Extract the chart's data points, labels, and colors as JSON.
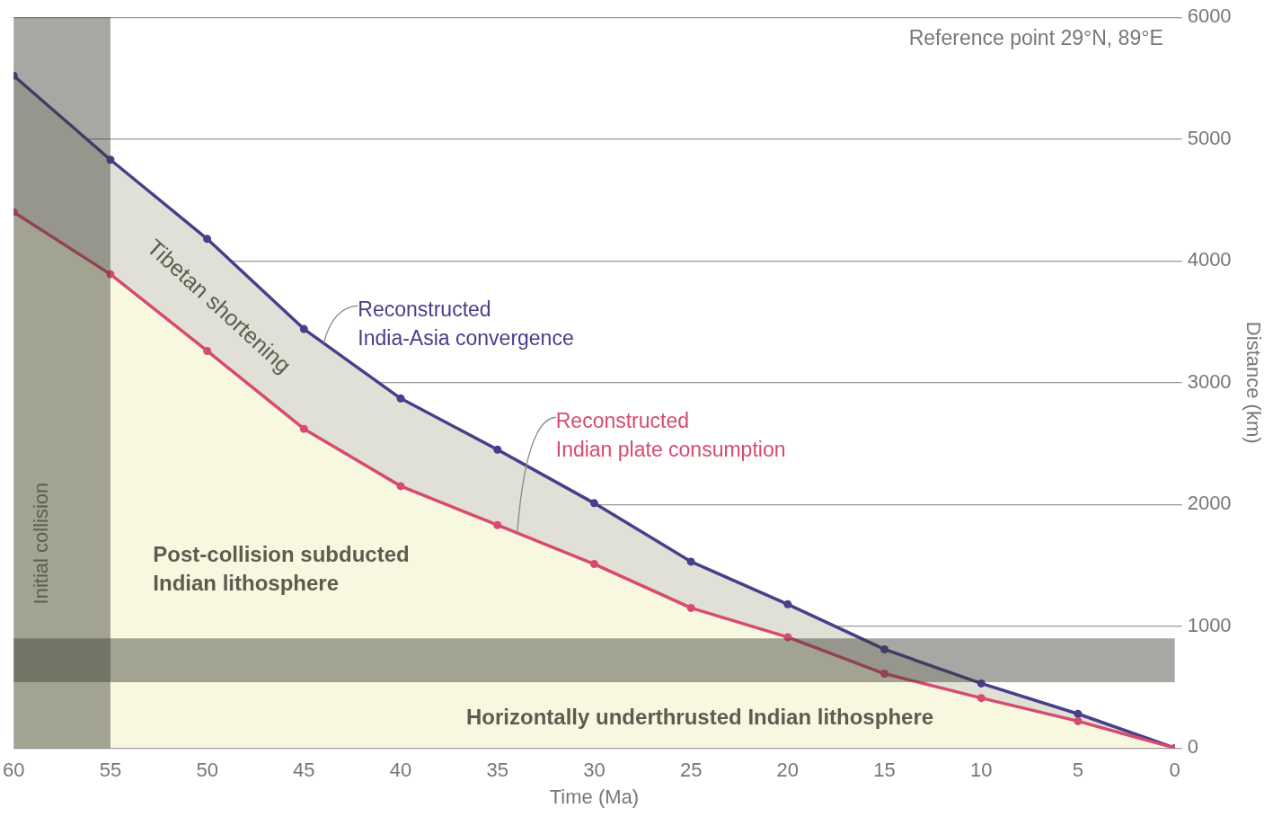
{
  "chart_data": {
    "type": "area",
    "xlabel": "Time (Ma)",
    "ylabel": "Distance (km)",
    "x": [
      60,
      55,
      50,
      45,
      40,
      35,
      30,
      25,
      20,
      15,
      10,
      5,
      0
    ],
    "series": [
      {
        "name": "Reconstructed India-Asia convergence",
        "color": "#463f8a",
        "values": [
          5520,
          4830,
          4180,
          3440,
          2870,
          2450,
          2010,
          1530,
          1180,
          810,
          530,
          280,
          0
        ]
      },
      {
        "name": "Reconstructed Indian plate consumption",
        "color": "#d84a6e",
        "values": [
          4400,
          3890,
          3260,
          2620,
          2150,
          1830,
          1510,
          1150,
          910,
          610,
          410,
          220,
          0
        ]
      }
    ],
    "xlim": [
      60,
      0
    ],
    "xticks": [
      60,
      55,
      50,
      45,
      40,
      35,
      30,
      25,
      20,
      15,
      10,
      5,
      0
    ],
    "ylim": [
      0,
      6000
    ],
    "yticks": [
      0,
      1000,
      2000,
      3000,
      4000,
      5000,
      6000
    ],
    "grid": "y",
    "legend": false,
    "marker": "circle",
    "line_style": "solid",
    "bands": [
      {
        "axis": "x",
        "from": 60,
        "to": 55,
        "label": "Initial collision"
      },
      {
        "axis": "y",
        "from": 540,
        "to": 900
      }
    ],
    "annotations": [
      "Reference point 29°N, 89°E",
      "Tibetan shortening",
      "Post-collision subducted\nIndian lithosphere",
      "Horizontally underthrusted Indian lithosphere"
    ]
  }
}
